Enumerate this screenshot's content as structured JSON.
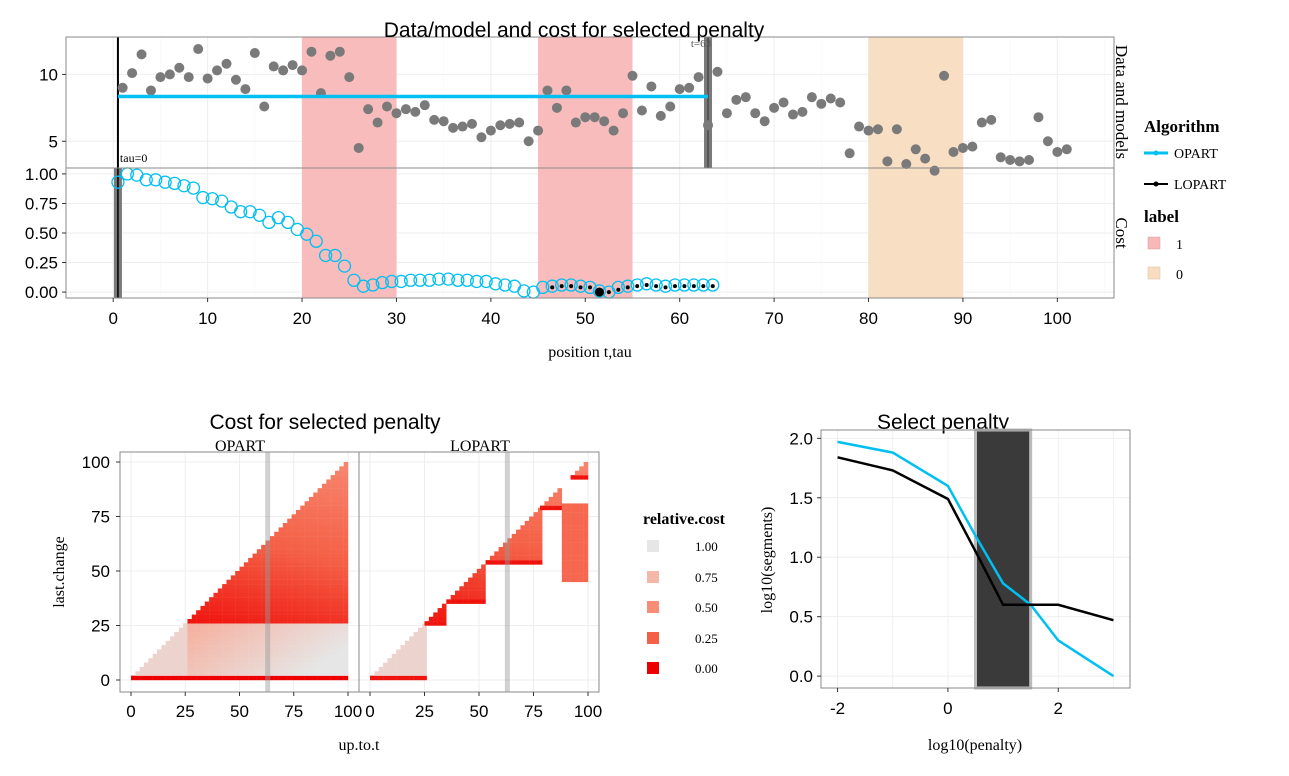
{
  "top": {
    "title": "Data/model and cost for selected penalty",
    "facet_data": "Data and models",
    "facet_cost": "Cost",
    "xlabel": "position t,tau",
    "xlim": [
      -5,
      106
    ],
    "x_ticks": [
      0,
      10,
      20,
      30,
      40,
      50,
      60,
      70,
      80,
      90,
      100
    ],
    "data_panel": {
      "ylim": [
        3.0,
        12.8
      ],
      "y_ticks": [
        5,
        10
      ]
    },
    "cost_panel": {
      "ylim": [
        -0.05,
        1.05
      ],
      "y_ticks": [
        "0.00",
        "0.25",
        "0.50",
        "0.75",
        "1.00"
      ],
      "y_tick_values": [
        0,
        0.25,
        0.5,
        0.75,
        1.0
      ]
    },
    "label_regions": [
      {
        "start": 20,
        "end": 30,
        "label": "1"
      },
      {
        "start": 45,
        "end": 55,
        "label": "1"
      },
      {
        "start": 80,
        "end": 90,
        "label": "0"
      }
    ],
    "t_marker": {
      "t": 63,
      "text": "t=63"
    },
    "tau_marker": {
      "tau": 0.5,
      "text": "tau=0"
    },
    "data_points": [
      9.0,
      10.1,
      11.5,
      8.8,
      9.8,
      10.0,
      10.5,
      9.8,
      11.9,
      9.7,
      10.3,
      10.8,
      9.6,
      8.9,
      11.6,
      7.6,
      10.6,
      10.3,
      10.7,
      10.3,
      11.7,
      8.6,
      11.4,
      11.7,
      9.8,
      4.5,
      7.4,
      6.4,
      7.6,
      7.1,
      7.4,
      7.2,
      7.7,
      6.6,
      6.5,
      6.0,
      6.1,
      6.3,
      5.3,
      5.8,
      6.2,
      6.3,
      6.4,
      5.0,
      5.8,
      8.8,
      7.5,
      8.8,
      6.4,
      6.8,
      6.8,
      6.5,
      5.8,
      7.1,
      9.9,
      7.3,
      9.1,
      6.9,
      7.6,
      8.9,
      9.0,
      9.8,
      6.2,
      10.2,
      7.1,
      8.1,
      8.3,
      7.1,
      6.5,
      7.5,
      7.9,
      7.0,
      7.2,
      8.3,
      7.8,
      8.2,
      7.9,
      4.1,
      6.1,
      5.8,
      5.9,
      3.5,
      5.9,
      3.3,
      4.4,
      3.7,
      2.8,
      9.9,
      4.2,
      4.5,
      4.6,
      6.4,
      6.6,
      3.8,
      3.6,
      3.5,
      3.6,
      6.8,
      5.0,
      4.2,
      4.4
    ],
    "model_segment": {
      "start": 0.5,
      "end": 63,
      "mean": 8.35
    },
    "opart_cost": [
      0.93,
      1.0,
      0.99,
      0.95,
      0.95,
      0.93,
      0.92,
      0.9,
      0.88,
      0.8,
      0.79,
      0.77,
      0.72,
      0.68,
      0.68,
      0.65,
      0.59,
      0.63,
      0.59,
      0.53,
      0.49,
      0.43,
      0.31,
      0.31,
      0.22,
      0.1,
      0.05,
      0.06,
      0.08,
      0.09,
      0.09,
      0.1,
      0.1,
      0.1,
      0.11,
      0.11,
      0.1,
      0.1,
      0.09,
      0.09,
      0.07,
      0.06,
      0.05,
      0.01,
      0.0,
      0.04,
      0.05,
      0.06,
      0.06,
      0.05,
      0.04,
      0.01,
      0.0,
      0.04,
      0.05,
      0.06,
      0.07,
      0.06,
      0.05,
      0.06,
      0.06,
      0.06,
      0.06,
      0.06
    ],
    "lopart_cost": [
      null,
      null,
      null,
      null,
      null,
      null,
      null,
      null,
      null,
      null,
      null,
      null,
      null,
      null,
      null,
      null,
      null,
      null,
      null,
      null,
      null,
      null,
      null,
      null,
      null,
      null,
      null,
      null,
      null,
      null,
      null,
      null,
      null,
      null,
      null,
      null,
      null,
      null,
      null,
      null,
      null,
      null,
      null,
      null,
      null,
      null,
      0.04,
      0.05,
      0.05,
      0.04,
      0.04,
      0.02,
      0.0,
      0.02,
      0.04,
      0.05,
      0.06,
      0.05,
      0.04,
      0.05,
      0.05,
      0.05,
      0.05,
      0.05
    ],
    "selected_tau": {
      "tau": 51.5,
      "cost": 0.0
    }
  },
  "legend_top": {
    "algorithm_title": "Algorithm",
    "algorithms": [
      {
        "name": "OPART",
        "color": "#00BFF1"
      },
      {
        "name": "LOPART",
        "color": "#000000"
      }
    ],
    "label_title": "label",
    "labels": [
      {
        "name": "1",
        "color": "#F8B8B8"
      },
      {
        "name": "0",
        "color": "#F8DCC0"
      }
    ]
  },
  "heatmap": {
    "title": "Cost for selected penalty",
    "xlabel": "up.to.t",
    "ylabel": "last.change",
    "panels": [
      "OPART",
      "LOPART"
    ],
    "x_ticks": [
      0,
      25,
      50,
      75,
      100
    ],
    "y_ticks": [
      0,
      25,
      50,
      75,
      100
    ],
    "selected_t": 63,
    "lopart_triangles": [
      [
        0,
        25
      ],
      [
        25,
        35
      ],
      [
        35,
        53
      ],
      [
        53,
        78
      ],
      [
        78,
        88
      ],
      [
        92,
        100
      ]
    ],
    "lopart_blocks": [
      {
        "x": [
          88,
          100
        ],
        "y": [
          45,
          80
        ]
      }
    ],
    "colorbar": {
      "title": "relative.cost",
      "levels": [
        {
          "label": "1.00",
          "color": "#E6E6E6"
        },
        {
          "label": "0.75",
          "color": "#F4B7A8"
        },
        {
          "label": "0.50",
          "color": "#F88C76"
        },
        {
          "label": "0.25",
          "color": "#F45F45"
        },
        {
          "label": "0.00",
          "color": "#EE0000"
        }
      ]
    }
  },
  "penalty": {
    "title": "Select penalty",
    "xlabel": "log10(penalty)",
    "ylabel": "log10(segments)",
    "xlim": [
      -2.3,
      3.3
    ],
    "ylim": [
      -0.1,
      2.07
    ],
    "x_ticks": [
      -2,
      0,
      2
    ],
    "y_ticks": [
      "0.0",
      "0.5",
      "1.0",
      "1.5",
      "2.0"
    ],
    "y_tick_values": [
      0,
      0.5,
      1.0,
      1.5,
      2.0
    ],
    "opart": {
      "x": [
        -2,
        -1,
        0,
        0.5,
        1,
        1.5,
        2,
        3
      ],
      "y": [
        1.97,
        1.88,
        1.6,
        1.18,
        0.78,
        0.6,
        0.3,
        0.0
      ]
    },
    "lopart": {
      "x": [
        -2,
        -1,
        0,
        0.5,
        1,
        1.5,
        2,
        3
      ],
      "y": [
        1.84,
        1.73,
        1.49,
        1.05,
        0.6,
        0.6,
        0.6,
        0.47
      ]
    },
    "selected_range": [
      0.5,
      1.5
    ]
  }
}
